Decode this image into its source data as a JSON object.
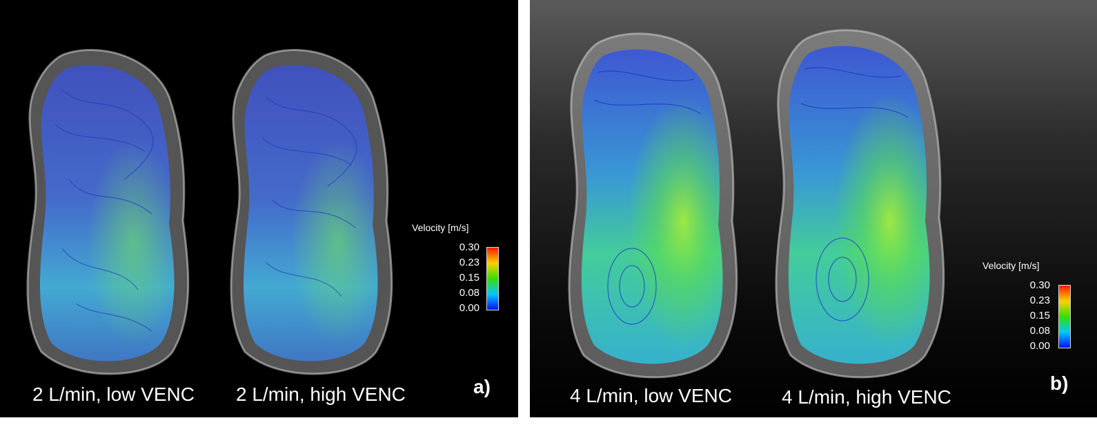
{
  "panels": [
    {
      "label": "a)",
      "captions": [
        "2 L/min, low VENC",
        "2 L/min, high VENC"
      ],
      "legend": {
        "title": "Velocity [m/s]",
        "ticks": [
          "0.30",
          "0.23",
          "0.15",
          "0.08",
          "0.00"
        ]
      }
    },
    {
      "label": "b)",
      "captions": [
        "4 L/min, low VENC",
        "4 L/min, high VENC"
      ],
      "legend": {
        "title": "Velocity [m/s]",
        "ticks": [
          "0.30",
          "0.23",
          "0.15",
          "0.08",
          "0.00"
        ]
      }
    }
  ],
  "colors": {
    "velocity_high": "#ff1a00",
    "velocity_mid_high": "#ffd000",
    "velocity_mid": "#33e000",
    "velocity_mid_low": "#00c8ff",
    "velocity_low": "#0010ff",
    "vessel_wall": "#b8b8b8"
  }
}
